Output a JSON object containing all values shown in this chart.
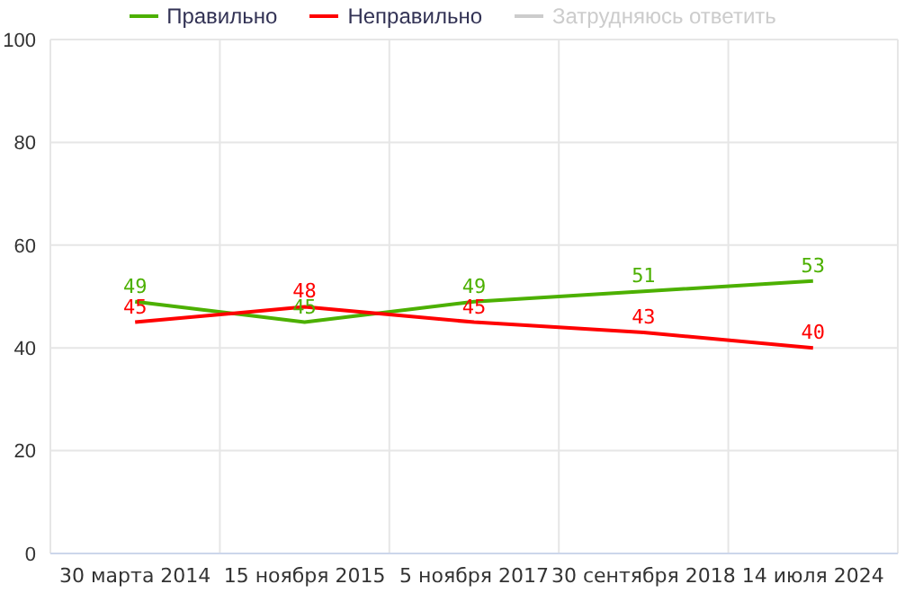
{
  "chart_data": {
    "type": "line",
    "categories": [
      "30 марта 2014",
      "15 ноября 2015",
      "5 ноября 2017",
      "30 сентября 2018",
      "14 июля 2024"
    ],
    "series": [
      {
        "name": "Правильно",
        "color": "#4cb000",
        "values": [
          49,
          45,
          49,
          51,
          53
        ]
      },
      {
        "name": "Неправильно",
        "color": "#ff0000",
        "values": [
          45,
          48,
          45,
          43,
          40
        ]
      },
      {
        "name": "Затрудняюсь ответить",
        "color": "#cccccc",
        "values": [
          null,
          null,
          null,
          null,
          null
        ]
      }
    ],
    "ylim": [
      0,
      100
    ],
    "yticks": [
      0,
      20,
      40,
      60,
      80,
      100
    ],
    "grid": true,
    "legend": "top",
    "data_labels": true,
    "marker": "none",
    "line_style": "solid"
  }
}
